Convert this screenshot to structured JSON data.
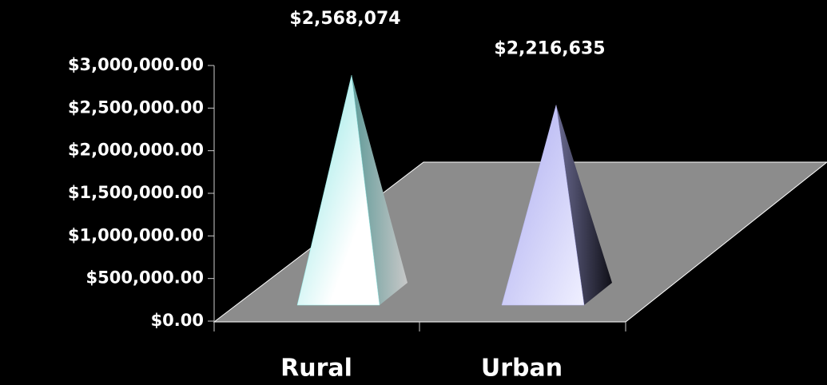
{
  "chart_data": {
    "type": "pyramid",
    "categories": [
      "Rural",
      "Urban"
    ],
    "values": [
      2568074,
      2216635
    ],
    "value_labels": [
      "$2,568,074",
      "$2,216,635"
    ],
    "colors": [
      "#8fe9e6",
      "#b8b8f5"
    ],
    "ylim": [
      0,
      3000000
    ],
    "yticks": [
      {
        "value": 0,
        "label": "$0.00"
      },
      {
        "value": 500000,
        "label": "$500,000.00"
      },
      {
        "value": 1000000,
        "label": "$1,000,000.00"
      },
      {
        "value": 1500000,
        "label": "$1,500,000.00"
      },
      {
        "value": 2000000,
        "label": "$2,000,000.00"
      },
      {
        "value": 2500000,
        "label": "$2,500,000.00"
      },
      {
        "value": 3000000,
        "label": "$3,000,000.00"
      }
    ]
  }
}
